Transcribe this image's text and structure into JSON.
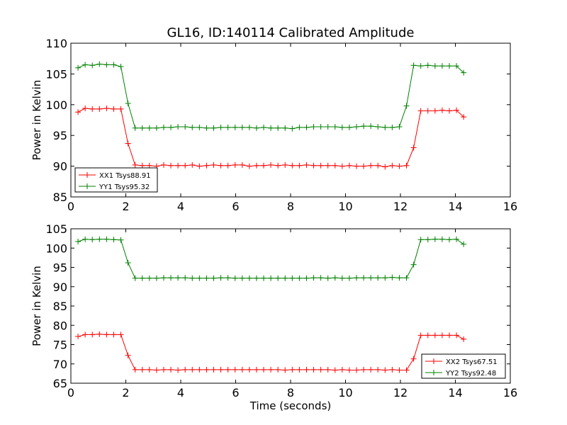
{
  "figure_title": "GL16, ID:140114 Calibrated Amplitude",
  "chart_data": [
    {
      "type": "line",
      "title": "GL16, ID:140114 Calibrated Amplitude",
      "xlabel": "",
      "ylabel": "Power in Kelvin",
      "xlim": [
        0,
        16
      ],
      "ylim": [
        85,
        110
      ],
      "xticks": [
        0,
        2,
        4,
        6,
        8,
        10,
        12,
        14,
        16
      ],
      "yticks": [
        85,
        90,
        95,
        100,
        105,
        110
      ],
      "legend_position": "lower-left",
      "x": [
        0.26,
        0.52,
        0.78,
        1.04,
        1.3,
        1.56,
        1.82,
        2.08,
        2.34,
        2.6,
        2.86,
        3.12,
        3.38,
        3.64,
        3.9,
        4.16,
        4.42,
        4.68,
        4.94,
        5.2,
        5.46,
        5.72,
        5.98,
        6.24,
        6.5,
        6.76,
        7.02,
        7.28,
        7.54,
        7.8,
        8.06,
        8.32,
        8.58,
        8.84,
        9.1,
        9.36,
        9.62,
        9.88,
        10.14,
        10.4,
        10.66,
        10.92,
        11.18,
        11.44,
        11.7,
        11.96,
        12.22,
        12.48,
        12.74,
        13.0,
        13.26,
        13.52,
        13.78,
        14.04,
        14.3
      ],
      "series": [
        {
          "name": "XX1 Tsys88.91",
          "color": "#ff0000",
          "values": [
            98.8,
            99.4,
            99.3,
            99.3,
            99.4,
            99.3,
            99.3,
            93.7,
            90.2,
            90.1,
            90.1,
            90.0,
            90.2,
            90.1,
            90.1,
            90.1,
            90.2,
            90.0,
            90.1,
            90.2,
            90.1,
            90.1,
            90.2,
            90.2,
            90.0,
            90.1,
            90.1,
            90.2,
            90.1,
            90.2,
            90.1,
            90.1,
            90.2,
            90.1,
            90.1,
            90.1,
            90.1,
            90.0,
            90.1,
            90.0,
            90.0,
            90.1,
            90.1,
            89.9,
            90.1,
            90.0,
            90.1,
            93.0,
            99.0,
            99.0,
            99.0,
            99.1,
            99.0,
            99.1,
            98.0
          ]
        },
        {
          "name": "YY1 Tsys95.32",
          "color": "#008000",
          "values": [
            106.0,
            106.5,
            106.4,
            106.6,
            106.5,
            106.5,
            106.2,
            100.2,
            96.2,
            96.2,
            96.2,
            96.2,
            96.3,
            96.3,
            96.4,
            96.4,
            96.3,
            96.3,
            96.2,
            96.2,
            96.3,
            96.3,
            96.3,
            96.3,
            96.3,
            96.2,
            96.3,
            96.2,
            96.2,
            96.2,
            96.1,
            96.3,
            96.3,
            96.4,
            96.4,
            96.4,
            96.4,
            96.3,
            96.3,
            96.4,
            96.5,
            96.5,
            96.4,
            96.3,
            96.3,
            96.4,
            99.8,
            106.4,
            106.3,
            106.4,
            106.3,
            106.3,
            106.3,
            106.3,
            105.2
          ]
        }
      ]
    },
    {
      "type": "line",
      "title": "",
      "xlabel": "Time (seconds)",
      "ylabel": "Power in Kelvin",
      "xlim": [
        0,
        16
      ],
      "ylim": [
        65,
        105
      ],
      "xticks": [
        0,
        2,
        4,
        6,
        8,
        10,
        12,
        14,
        16
      ],
      "yticks": [
        65,
        70,
        75,
        80,
        85,
        90,
        95,
        100,
        105
      ],
      "legend_position": "lower-right",
      "x": [
        0.26,
        0.52,
        0.78,
        1.04,
        1.3,
        1.56,
        1.82,
        2.08,
        2.34,
        2.6,
        2.86,
        3.12,
        3.38,
        3.64,
        3.9,
        4.16,
        4.42,
        4.68,
        4.94,
        5.2,
        5.46,
        5.72,
        5.98,
        6.24,
        6.5,
        6.76,
        7.02,
        7.28,
        7.54,
        7.8,
        8.06,
        8.32,
        8.58,
        8.84,
        9.1,
        9.36,
        9.62,
        9.88,
        10.14,
        10.4,
        10.66,
        10.92,
        11.18,
        11.44,
        11.7,
        11.96,
        12.22,
        12.48,
        12.74,
        13.0,
        13.26,
        13.52,
        13.78,
        14.04,
        14.3
      ],
      "series": [
        {
          "name": "XX2 Tsys67.51",
          "color": "#ff0000",
          "values": [
            77.1,
            77.6,
            77.6,
            77.7,
            77.6,
            77.6,
            77.6,
            72.2,
            68.5,
            68.5,
            68.5,
            68.4,
            68.5,
            68.5,
            68.4,
            68.5,
            68.5,
            68.5,
            68.5,
            68.5,
            68.5,
            68.5,
            68.5,
            68.5,
            68.5,
            68.5,
            68.5,
            68.5,
            68.5,
            68.4,
            68.5,
            68.5,
            68.5,
            68.5,
            68.5,
            68.5,
            68.4,
            68.5,
            68.4,
            68.4,
            68.5,
            68.5,
            68.5,
            68.4,
            68.5,
            68.4,
            68.4,
            71.3,
            77.4,
            77.4,
            77.4,
            77.4,
            77.4,
            77.4,
            76.4
          ]
        },
        {
          "name": "YY2 Tsys92.48",
          "color": "#008000",
          "values": [
            101.7,
            102.3,
            102.2,
            102.3,
            102.3,
            102.2,
            102.1,
            96.2,
            92.2,
            92.2,
            92.2,
            92.2,
            92.3,
            92.3,
            92.3,
            92.3,
            92.2,
            92.2,
            92.2,
            92.2,
            92.3,
            92.3,
            92.2,
            92.2,
            92.2,
            92.2,
            92.2,
            92.2,
            92.2,
            92.2,
            92.2,
            92.2,
            92.2,
            92.3,
            92.3,
            92.2,
            92.3,
            92.2,
            92.2,
            92.3,
            92.3,
            92.3,
            92.3,
            92.3,
            92.4,
            92.3,
            92.3,
            95.7,
            102.2,
            102.2,
            102.3,
            102.3,
            102.2,
            102.3,
            101.0
          ]
        }
      ]
    }
  ]
}
